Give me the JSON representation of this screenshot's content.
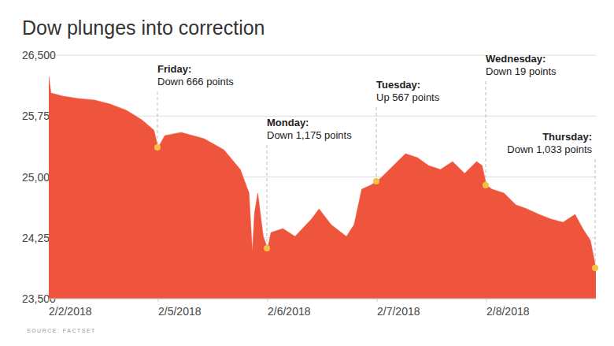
{
  "chart_data": {
    "type": "area",
    "title": "Dow plunges into correction",
    "source": "SOURCE: FACTSET",
    "color": "#ef553c",
    "grid": true,
    "x": [
      0,
      0.02,
      0.13,
      0.27,
      0.42,
      0.56,
      0.71,
      0.85,
      0.96,
      1.0,
      1.06,
      1.21,
      1.42,
      1.6,
      1.75,
      1.83,
      1.86,
      1.88,
      1.91,
      1.96,
      2.0,
      2.03,
      2.14,
      2.25,
      2.4,
      2.47,
      2.58,
      2.72,
      2.79,
      2.86,
      2.94,
      3.0,
      3.04,
      3.15,
      3.26,
      3.37,
      3.47,
      3.58,
      3.69,
      3.8,
      3.91,
      3.96,
      4.0,
      4.05,
      4.16,
      4.27,
      4.37,
      4.48,
      4.59,
      4.7,
      4.81,
      4.88,
      4.95,
      5.0
    ],
    "values": [
      26238,
      26034,
      25995,
      25966,
      25947,
      25898,
      25821,
      25704,
      25578,
      25364,
      25510,
      25549,
      25471,
      25335,
      25092,
      24801,
      24073,
      24558,
      24801,
      24267,
      24121,
      24316,
      24364,
      24267,
      24481,
      24607,
      24413,
      24267,
      24413,
      24850,
      24898,
      24947,
      24995,
      25141,
      25287,
      25238,
      25141,
      25092,
      25190,
      25044,
      25190,
      25141,
      24898,
      24850,
      24801,
      24655,
      24607,
      24539,
      24481,
      24442,
      24539,
      24364,
      24219,
      23879
    ],
    "xlim": [
      0,
      5
    ],
    "xticks": [
      {
        "value": 0,
        "label": "2/2/2018"
      },
      {
        "value": 1,
        "label": "2/5/2018"
      },
      {
        "value": 2,
        "label": "2/6/2018"
      },
      {
        "value": 3,
        "label": "2/7/2018"
      },
      {
        "value": 4,
        "label": "2/8/2018"
      }
    ],
    "ylim": [
      23500,
      26500
    ],
    "yticks": [
      {
        "value": 23500,
        "label": "23,500"
      },
      {
        "value": 24250,
        "label": "24,250"
      },
      {
        "value": 25000,
        "label": "25,000"
      },
      {
        "value": 25750,
        "label": "25,750"
      },
      {
        "value": 26500,
        "label": "26,500"
      }
    ],
    "annotations": [
      {
        "label": "Friday:",
        "text": "Down 666 points",
        "x": 1.0,
        "y": 25364
      },
      {
        "label": "Monday:",
        "text": "Down 1,175 points",
        "x": 2.0,
        "y": 24121
      },
      {
        "label": "Tuesday:",
        "text": "Up 567 points",
        "x": 3.0,
        "y": 24947
      },
      {
        "label": "Wednesday:",
        "text": "Down 19 points",
        "x": 4.0,
        "y": 24898
      },
      {
        "label": "Thursday:",
        "text": "Down 1,033 points",
        "x": 5.0,
        "y": 23879
      }
    ]
  }
}
